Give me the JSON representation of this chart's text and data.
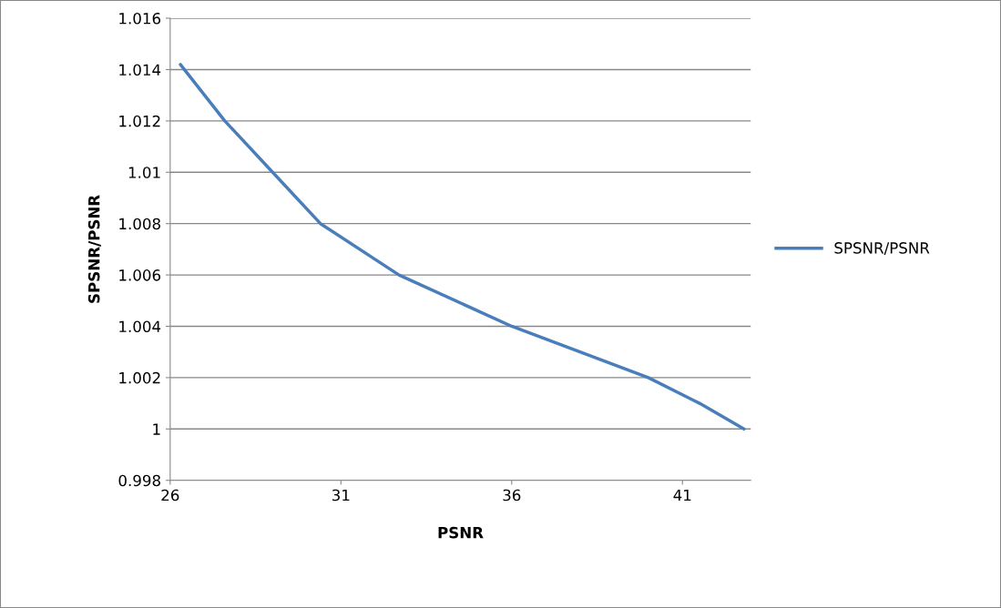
{
  "chart_data": {
    "type": "line",
    "xlabel": "PSNR",
    "ylabel": "SPSNR/PSNR",
    "x": [
      26.3,
      27.6,
      29.0,
      30.4,
      32.7,
      36.0,
      38.0,
      40.0,
      41.5,
      42.8
    ],
    "series": [
      {
        "name": "SPSNR/PSNR",
        "color": "#4a7ebb",
        "values": [
          1.0142,
          1.012,
          1.01,
          1.008,
          1.006,
          1.004,
          1.003,
          1.002,
          1.001,
          1.0
        ]
      }
    ],
    "xlim": [
      26,
      43
    ],
    "xticks": [
      26,
      31,
      36,
      41
    ],
    "ylim": [
      0.998,
      1.016
    ],
    "yticks": [
      0.998,
      1,
      1.002,
      1.004,
      1.006,
      1.008,
      1.01,
      1.012,
      1.014,
      1.016
    ],
    "grid": "y",
    "legend": "right",
    "marker": "none",
    "line_style": "solid"
  }
}
